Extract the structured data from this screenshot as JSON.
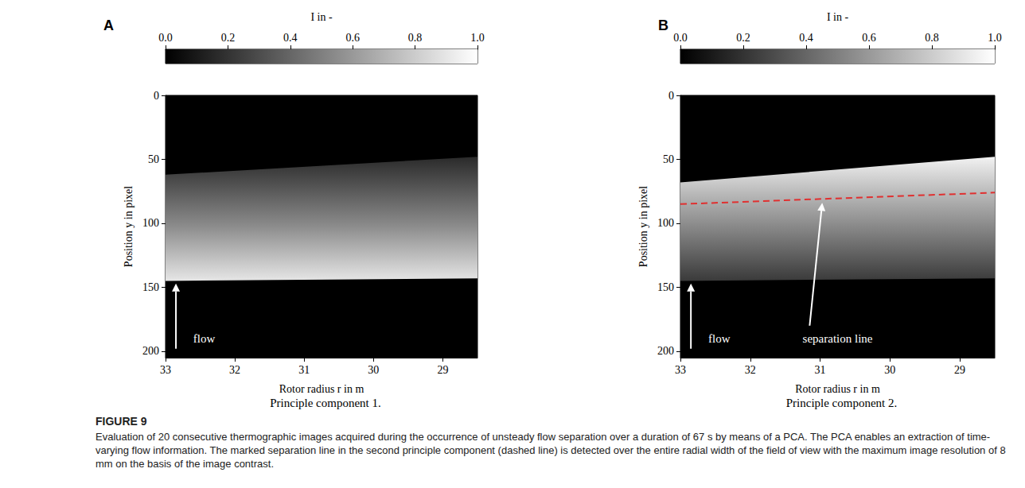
{
  "chart_data": [
    {
      "type": "image",
      "letter": "A",
      "title": "Principle component 1.",
      "xlabel": "Rotor radius r in m",
      "ylabel": "Position y in pixel",
      "xlim": [
        33,
        28.5
      ],
      "xticks": [
        33,
        32,
        31,
        30,
        29
      ],
      "ylim": [
        205,
        0
      ],
      "yticks": [
        0,
        50,
        100,
        150,
        200
      ],
      "colorbar": {
        "label": "I in -",
        "lim": [
          0,
          1
        ],
        "ticks": [
          {
            "value": 0,
            "label": "0.0"
          },
          0.2,
          0.4,
          0.6,
          0.8,
          {
            "value": 1,
            "label": "1.0"
          }
        ]
      },
      "blade_region": {
        "r": [
          33,
          28.5
        ],
        "top": [
          62,
          48
        ],
        "bottom": [
          145,
          143
        ]
      },
      "annotations": [
        {
          "text": "flow",
          "x": 32.6,
          "y": 190,
          "arrow_from": [
            32.85,
            198
          ],
          "arrow_to": [
            32.85,
            147
          ]
        }
      ]
    },
    {
      "type": "image",
      "letter": "B",
      "title": "Principle component 2.",
      "xlabel": "Rotor radius r in m",
      "ylabel": "Position y in pixel",
      "xlim": [
        33,
        28.5
      ],
      "xticks": [
        33,
        32,
        31,
        30,
        29
      ],
      "ylim": [
        205,
        0
      ],
      "yticks": [
        0,
        50,
        100,
        150,
        200
      ],
      "colorbar": {
        "label": "I in -",
        "lim": [
          0,
          1
        ],
        "ticks": [
          {
            "value": 0,
            "label": "0.0"
          },
          0.2,
          0.4,
          0.6,
          0.8,
          {
            "value": 1,
            "label": "1.0"
          }
        ]
      },
      "blade_region": {
        "r": [
          33,
          28.5
        ],
        "top": [
          68,
          48
        ],
        "bottom": [
          145,
          143
        ]
      },
      "separation_line": {
        "x": [
          33,
          28.5
        ],
        "y": [
          85,
          76
        ],
        "color": "#e03030",
        "line_style": "dashed"
      },
      "annotations": [
        {
          "text": "flow",
          "x": 32.6,
          "y": 190,
          "arrow_from": [
            32.85,
            198
          ],
          "arrow_to": [
            32.85,
            147
          ]
        },
        {
          "text": "separation line",
          "x": 31.25,
          "y": 190,
          "arrow_from": [
            31.15,
            180
          ],
          "arrow_to": [
            30.97,
            84
          ]
        }
      ]
    }
  ],
  "caption": {
    "label": "FIGURE 9",
    "text": "Evaluation of 20 consecutive thermographic images acquired during the occurrence of unsteady flow separation over a duration of 67 s by means of a PCA. The PCA enables an extraction of time-varying flow information. The marked separation line in the second principle component (dashed line) is detected over the entire radial width of the field of view with the maximum image resolution of 8 mm on the basis of the image contrast."
  }
}
